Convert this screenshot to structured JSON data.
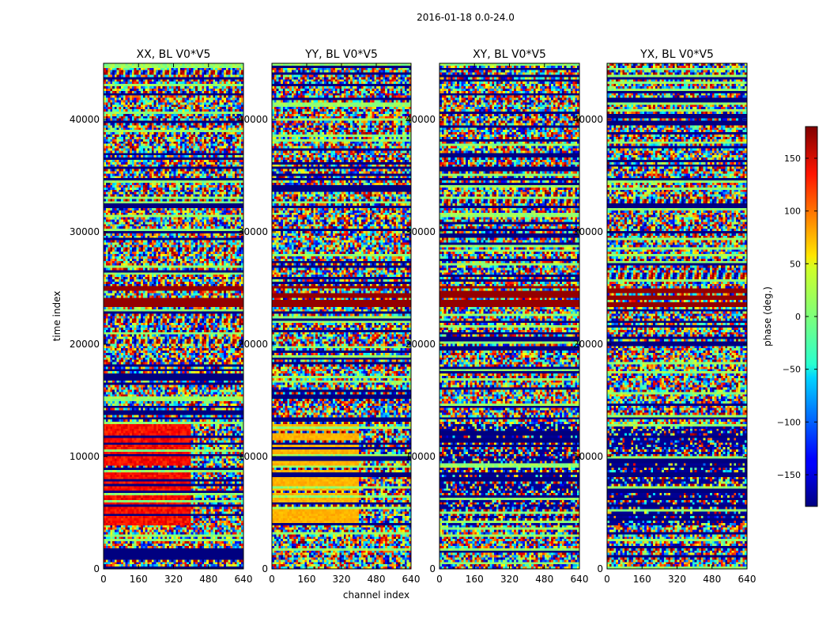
{
  "figure": {
    "suptitle": "2016-01-18 0.0-24.0"
  },
  "colorbar": {
    "label": "phase (deg.)",
    "min": -180,
    "max": 180,
    "ticks": [
      150,
      100,
      50,
      0,
      -50,
      -100,
      -150
    ],
    "tick_labels": [
      "150",
      "100",
      "50",
      "0",
      "−50",
      "−100",
      "−150"
    ]
  },
  "chart_data": [
    {
      "type": "heatmap",
      "title": "XX, BL V0*V5",
      "xlabel": "",
      "ylabel": "time index",
      "xlim": [
        0,
        640
      ],
      "ylim": [
        0,
        45000
      ],
      "xticks": [
        0,
        160,
        320,
        480,
        640
      ],
      "xtick_labels": [
        "0",
        "160",
        "320",
        "480",
        "640"
      ],
      "yticks": [
        0,
        10000,
        20000,
        30000,
        40000
      ],
      "ytick_labels": [
        "0",
        "10000",
        "20000",
        "30000",
        "40000"
      ],
      "value_units": "phase (deg.)",
      "value_range": [
        -180,
        180
      ]
    },
    {
      "type": "heatmap",
      "title": "YY, BL V0*V5",
      "xlabel": "channel index",
      "ylabel": "",
      "xlim": [
        0,
        640
      ],
      "ylim": [
        0,
        45000
      ],
      "xticks": [
        0,
        160,
        320,
        480,
        640
      ],
      "xtick_labels": [
        "0",
        "160",
        "320",
        "480",
        "640"
      ],
      "yticks": [
        0,
        10000,
        20000,
        30000,
        40000
      ],
      "ytick_labels": [
        "0",
        "10000",
        "20000",
        "30000",
        "40000"
      ],
      "value_units": "phase (deg.)",
      "value_range": [
        -180,
        180
      ]
    },
    {
      "type": "heatmap",
      "title": "XY, BL V0*V5",
      "xlabel": "",
      "ylabel": "",
      "xlim": [
        0,
        640
      ],
      "ylim": [
        0,
        45000
      ],
      "xticks": [
        0,
        160,
        320,
        480,
        640
      ],
      "xtick_labels": [
        "0",
        "160",
        "320",
        "480",
        "640"
      ],
      "yticks": [
        0,
        10000,
        20000,
        30000,
        40000
      ],
      "ytick_labels": [
        "0",
        "10000",
        "20000",
        "30000",
        "40000"
      ],
      "value_units": "phase (deg.)",
      "value_range": [
        -180,
        180
      ]
    },
    {
      "type": "heatmap",
      "title": "YX, BL V0*V5",
      "xlabel": "",
      "ylabel": "",
      "xlim": [
        0,
        640
      ],
      "ylim": [
        0,
        45000
      ],
      "xticks": [
        0,
        160,
        320,
        480,
        640
      ],
      "xtick_labels": [
        "0",
        "160",
        "320",
        "480",
        "640"
      ],
      "yticks": [
        0,
        10000,
        20000,
        30000,
        40000
      ],
      "ytick_labels": [
        "0",
        "10000",
        "20000",
        "30000",
        "40000"
      ],
      "value_units": "phase (deg.)",
      "value_range": [
        -180,
        180
      ]
    }
  ]
}
